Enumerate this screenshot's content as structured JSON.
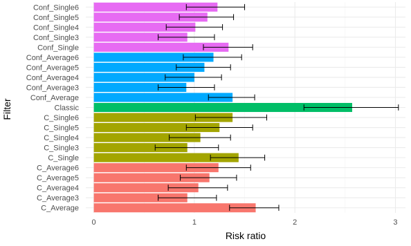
{
  "chart_data": {
    "type": "bar",
    "orientation": "horizontal",
    "xlabel": "Risk ratio",
    "ylabel": "Filter",
    "xlim": [
      -0.08,
      3.1
    ],
    "xticks": [
      0,
      1,
      2,
      3
    ],
    "xtick_labels": [
      "0",
      "1",
      "2",
      "3"
    ],
    "grid": true,
    "legend": "none",
    "categories": [
      "Conf_Single6",
      "Conf_Single5",
      "Conf_Single4",
      "Conf_Single3",
      "Conf_Single",
      "Conf_Average6",
      "Conf_Average5",
      "Conf_Average4",
      "Conf_Average3",
      "Conf_Average",
      "Classic",
      "C_Single6",
      "C_Single5",
      "C_Single4",
      "C_Single3",
      "C_Single",
      "C_Average6",
      "C_Average5",
      "C_Average4",
      "C_Average3",
      "C_Average"
    ],
    "values": [
      1.23,
      1.13,
      1.01,
      0.93,
      1.34,
      1.19,
      1.1,
      1.0,
      0.92,
      1.38,
      2.57,
      1.38,
      1.25,
      1.06,
      0.93,
      1.44,
      1.24,
      1.15,
      1.04,
      0.93,
      1.61
    ],
    "ci_low": [
      0.92,
      0.85,
      0.72,
      0.64,
      1.09,
      0.89,
      0.82,
      0.71,
      0.64,
      1.14,
      2.09,
      1.01,
      0.92,
      0.75,
      0.61,
      1.16,
      0.92,
      0.86,
      0.74,
      0.64,
      1.35
    ],
    "ci_high": [
      1.5,
      1.39,
      1.28,
      1.2,
      1.58,
      1.47,
      1.36,
      1.27,
      1.2,
      1.6,
      3.03,
      1.72,
      1.58,
      1.36,
      1.24,
      1.7,
      1.56,
      1.42,
      1.33,
      1.22,
      1.84
    ],
    "groups": [
      "Conf_Single",
      "Conf_Single",
      "Conf_Single",
      "Conf_Single",
      "Conf_Single",
      "Conf_Average",
      "Conf_Average",
      "Conf_Average",
      "Conf_Average",
      "Conf_Average",
      "Classic",
      "C_Single",
      "C_Single",
      "C_Single",
      "C_Single",
      "C_Single",
      "C_Average",
      "C_Average",
      "C_Average",
      "C_Average",
      "C_Average"
    ],
    "group_colors": {
      "Conf_Single": "#E76BF3",
      "Conf_Average": "#00A9FF",
      "Classic": "#00BE67",
      "C_Single": "#A3A500",
      "C_Average": "#F8766D"
    }
  }
}
